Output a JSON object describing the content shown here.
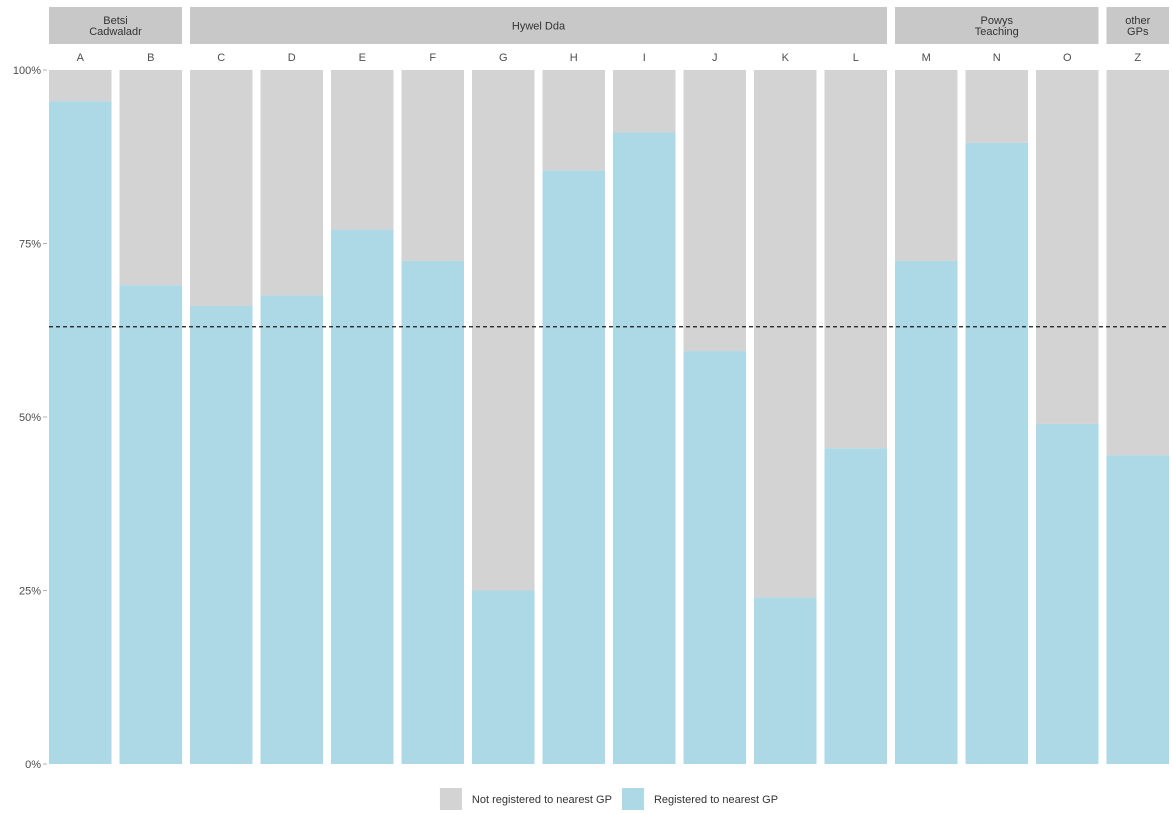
{
  "chart_data": {
    "type": "bar",
    "stacked": true,
    "facet_groups": [
      {
        "label": "Betsi Cadwaladr",
        "label_lines": [
          "Betsi",
          "Cadwaladr"
        ],
        "categories": [
          "A",
          "B"
        ]
      },
      {
        "label": "Hywel Dda",
        "label_lines": [
          "Hywel Dda"
        ],
        "categories": [
          "C",
          "D",
          "E",
          "F",
          "G",
          "H",
          "I",
          "J",
          "K",
          "L"
        ]
      },
      {
        "label": "Powys Teaching",
        "label_lines": [
          "Powys",
          "Teaching"
        ],
        "categories": [
          "M",
          "N",
          "O"
        ]
      },
      {
        "label": "other GPs",
        "label_lines": [
          "other",
          "GPs"
        ],
        "categories": [
          "Z"
        ]
      }
    ],
    "categories": [
      "A",
      "B",
      "C",
      "D",
      "E",
      "F",
      "G",
      "H",
      "I",
      "J",
      "K",
      "L",
      "M",
      "N",
      "O",
      "Z"
    ],
    "series": [
      {
        "name": "Registered to nearest GP",
        "color": "#add8e6",
        "values": [
          0.955,
          0.69,
          0.66,
          0.675,
          0.77,
          0.725,
          0.25,
          0.855,
          0.91,
          0.595,
          0.24,
          0.455,
          0.725,
          0.895,
          0.49,
          0.445
        ]
      },
      {
        "name": "Not registered to nearest GP",
        "color": "#d3d3d3",
        "values": [
          0.045,
          0.31,
          0.34,
          0.325,
          0.23,
          0.275,
          0.75,
          0.145,
          0.09,
          0.405,
          0.76,
          0.545,
          0.275,
          0.105,
          0.51,
          0.555
        ]
      }
    ],
    "reference_line": {
      "y": 0.63,
      "style": "dashed"
    },
    "ylim": [
      0,
      1
    ],
    "yticks": [
      {
        "value": 0,
        "label": "0%"
      },
      {
        "value": 0.25,
        "label": "25%"
      },
      {
        "value": 0.5,
        "label": "50%"
      },
      {
        "value": 0.75,
        "label": "75%"
      },
      {
        "value": 1,
        "label": "100%"
      }
    ],
    "legend": {
      "position": "bottom",
      "items": [
        {
          "label": "Not registered to nearest GP",
          "color": "#d3d3d3"
        },
        {
          "label": "Registered to nearest GP",
          "color": "#add8e6"
        }
      ]
    },
    "grid": false
  }
}
